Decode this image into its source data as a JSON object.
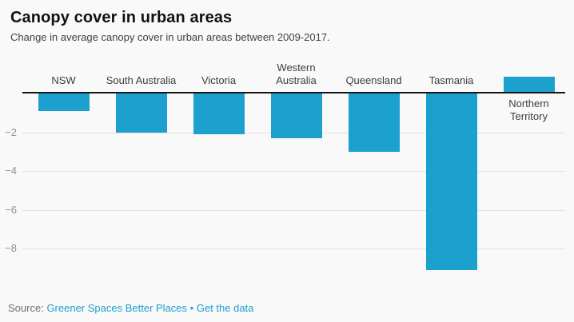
{
  "header": {
    "title": "Canopy cover in urban areas",
    "subtitle": "Change in average canopy cover in urban areas between 2009-2017."
  },
  "chart_data": {
    "type": "bar",
    "categories": [
      "NSW",
      "South Australia",
      "Victoria",
      "Western Australia",
      "Queensland",
      "Tasmania",
      "Northern Territory"
    ],
    "category_label_lines": [
      [
        "NSW"
      ],
      [
        "South Australia"
      ],
      [
        "Victoria"
      ],
      [
        "Western",
        "Australia"
      ],
      [
        "Queensland"
      ],
      [
        "Tasmania"
      ],
      [
        "Northern",
        "Territory"
      ]
    ],
    "values": [
      -0.9,
      -2.0,
      -2.1,
      -2.3,
      -3.0,
      -9.1,
      0.8
    ],
    "title": "Canopy cover in urban areas",
    "subtitle": "Change in average canopy cover in urban areas between 2009-2017.",
    "xlabel": "",
    "ylabel": "",
    "ylim": [
      -9.5,
      1
    ],
    "yticks": [
      -2,
      -4,
      -6,
      -8
    ],
    "grid": true,
    "legend": "none",
    "bar_color": "#1ca0ce"
  },
  "footer": {
    "source_label": "Source:",
    "source_link": "Greener Spaces Better Places",
    "separator": "•",
    "data_link": "Get the data"
  },
  "colors": {
    "accent": "#1ca0ce",
    "background": "#f9f9f9",
    "link": "#1ca0ce",
    "axis_line": "#161616",
    "gridline": "#e2e2e2",
    "tick_text": "#8f8f8f",
    "category_text": "#3d3d3d",
    "source_text": "#6e6e6e"
  }
}
